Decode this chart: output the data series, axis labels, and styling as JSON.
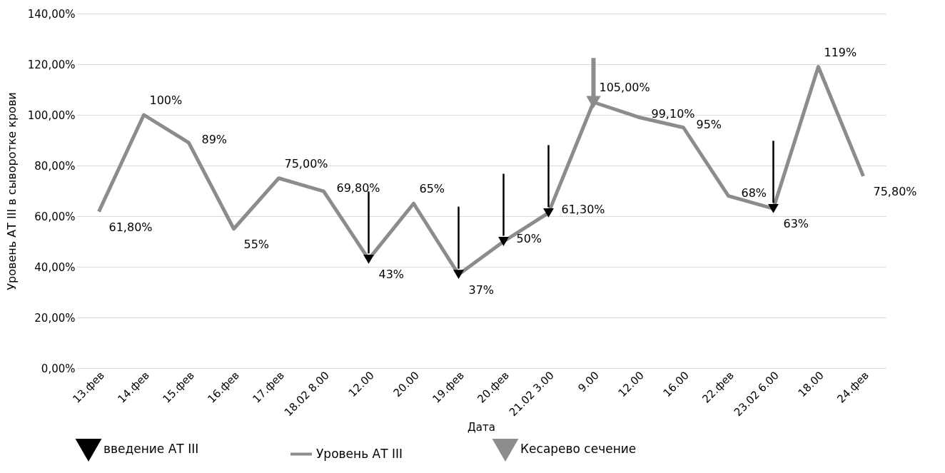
{
  "chart_data": {
    "type": "line",
    "xlabel": "Дата",
    "ylabel": "Уровень АТ III в сыворотке крови",
    "categories": [
      "13.фев",
      "14.фев",
      "15.фев",
      "16.фев",
      "17.фев",
      "18.02  8.00",
      "12.00",
      "20.00",
      "19.фев",
      "20.фев",
      "21.02  3.00",
      "9.00",
      "12.00",
      "16.00",
      "22.фев",
      "23.02  6.00",
      "18.00",
      "24.фев"
    ],
    "series": [
      {
        "name": "введение АТ III",
        "type": "scatter",
        "marker": "triangle",
        "color": "#000000",
        "values": [
          null,
          null,
          null,
          null,
          null,
          null,
          43,
          null,
          37,
          50,
          61.3,
          null,
          null,
          null,
          null,
          63,
          null,
          null
        ]
      },
      {
        "name": "Уровень АТ III",
        "type": "line",
        "color": "#8c8c8c",
        "values": [
          61.8,
          100,
          89,
          55,
          75,
          69.8,
          43,
          65,
          37,
          50,
          61.3,
          105,
          99.1,
          95,
          68,
          63,
          119,
          75.8
        ],
        "value_labels": [
          "61,80%",
          "100%",
          "89%",
          "55%",
          "75,00%",
          "69,80%",
          "43%",
          "65%",
          "37%",
          "50%",
          "61,30%",
          "105,00%",
          "99,10%",
          "95%",
          "68%",
          "63%",
          "119%",
          "75,80%"
        ]
      },
      {
        "name": "Кесарево сечение",
        "type": "scatter",
        "marker": "triangle",
        "color": "#8c8c8c",
        "values": [
          null,
          null,
          null,
          null,
          null,
          null,
          null,
          null,
          null,
          null,
          null,
          105,
          null,
          null,
          null,
          null,
          null,
          null
        ]
      }
    ],
    "ylim": [
      0,
      140
    ],
    "yticks": [
      {
        "value": 0,
        "label": "0,00%"
      },
      {
        "value": 20,
        "label": "20,00%"
      },
      {
        "value": 40,
        "label": "40,00%"
      },
      {
        "value": 60,
        "label": "60,00%"
      },
      {
        "value": 80,
        "label": "80,00%"
      },
      {
        "value": 100,
        "label": "100,00%"
      },
      {
        "value": 120,
        "label": "120,00%"
      },
      {
        "value": 140,
        "label": "140,00%"
      }
    ],
    "grid": "y",
    "legend": "bottom"
  }
}
